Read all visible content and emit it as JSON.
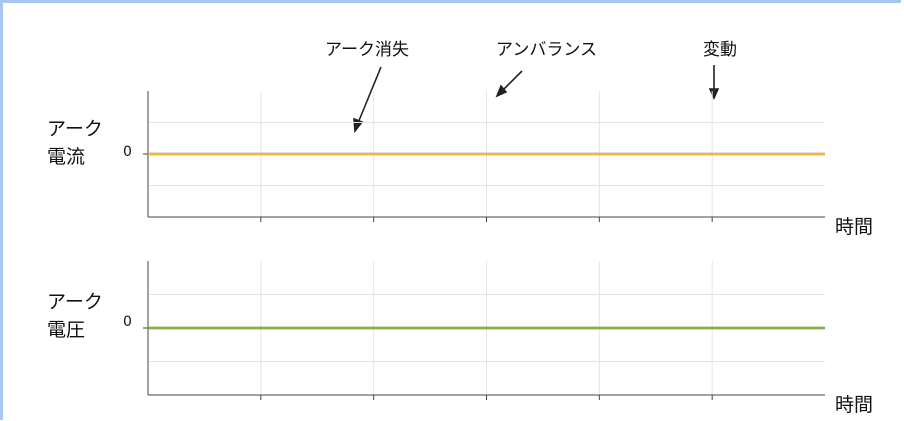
{
  "colors": {
    "blue": "#3a86c8",
    "orange": "#e0562a",
    "yellow": "#f0b73a",
    "green": "#7cb441",
    "grid": "#e4e4e4",
    "axis": "#444444"
  },
  "chart_data": [
    {
      "type": "line",
      "ylabel_line1": "アーク",
      "ylabel_line2": "電流",
      "xlabel": "時間",
      "ytick_label": "0",
      "xlim": [
        0,
        12
      ],
      "ylim": [
        -1.2,
        1.2
      ],
      "grid": true,
      "annotations": [
        {
          "text": "アーク消失"
        },
        {
          "text": "アンバランス"
        },
        {
          "text": "変動"
        }
      ],
      "series": [
        {
          "color": "blue",
          "points": [
            [
              0,
              0
            ],
            [
              0.5,
              0
            ],
            [
              1,
              0
            ],
            [
              1.5,
              0
            ],
            [
              2,
              0
            ],
            [
              2.5,
              0
            ],
            [
              3,
              0
            ],
            [
              3.5,
              0
            ],
            [
              4,
              0
            ],
            [
              4.5,
              0
            ],
            [
              5,
              0
            ],
            [
              5.5,
              0
            ],
            [
              6,
              0
            ],
            [
              6.5,
              0
            ],
            [
              7,
              0
            ],
            [
              7.5,
              0
            ],
            [
              8,
              0
            ],
            [
              8.5,
              0
            ],
            [
              9,
              0
            ],
            [
              9.5,
              0
            ],
            [
              10,
              0
            ],
            [
              10.5,
              0
            ],
            [
              11,
              0
            ],
            [
              11.5,
              0
            ],
            [
              12,
              0
            ]
          ]
        },
        {
          "color": "orange",
          "points": [
            [
              0,
              0
            ],
            [
              0.5,
              0
            ],
            [
              1,
              0
            ],
            [
              1.5,
              0
            ],
            [
              2,
              0
            ],
            [
              2.5,
              0
            ],
            [
              3,
              0
            ],
            [
              3.5,
              0
            ],
            [
              4,
              0
            ],
            [
              4.5,
              0
            ],
            [
              5,
              0
            ],
            [
              5.5,
              0
            ],
            [
              6,
              0
            ],
            [
              6.5,
              0
            ],
            [
              7,
              0
            ],
            [
              7.5,
              0
            ],
            [
              8,
              0
            ],
            [
              8.5,
              0
            ],
            [
              9,
              0
            ],
            [
              9.5,
              0
            ],
            [
              10,
              0
            ],
            [
              10.5,
              0
            ],
            [
              11,
              0
            ],
            [
              11.5,
              0
            ],
            [
              12,
              0
            ]
          ]
        },
        {
          "color": "yellow",
          "points": [
            [
              0,
              0
            ],
            [
              0.5,
              0
            ],
            [
              1,
              0
            ],
            [
              1.5,
              0
            ],
            [
              2,
              0
            ],
            [
              2.5,
              0
            ],
            [
              3,
              0
            ],
            [
              3.5,
              0
            ],
            [
              4,
              0
            ],
            [
              4.5,
              0
            ],
            [
              5,
              0
            ],
            [
              5.5,
              0
            ],
            [
              6,
              0
            ],
            [
              6.5,
              0
            ],
            [
              7,
              0
            ],
            [
              7.5,
              0
            ],
            [
              8,
              0
            ],
            [
              8.5,
              0
            ],
            [
              9,
              0
            ],
            [
              9.5,
              0
            ],
            [
              10,
              0
            ],
            [
              10.5,
              0
            ],
            [
              11,
              0
            ],
            [
              11.5,
              0
            ],
            [
              12,
              0
            ]
          ]
        }
      ]
    },
    {
      "type": "line",
      "ylabel_line1": "アーク",
      "ylabel_line2": "電圧",
      "xlabel": "時間",
      "ytick_label": "0",
      "xlim": [
        0,
        12
      ],
      "ylim": [
        -1.2,
        1.2
      ],
      "grid": true,
      "series": [
        {
          "color": "blue",
          "points": [
            [
              0,
              0
            ],
            [
              0.5,
              0
            ],
            [
              1,
              0
            ],
            [
              1.5,
              0
            ],
            [
              2,
              0
            ],
            [
              2.5,
              0
            ],
            [
              3,
              0
            ],
            [
              3.5,
              0
            ],
            [
              4,
              0
            ],
            [
              4.5,
              0
            ],
            [
              5,
              0
            ],
            [
              5.5,
              0
            ],
            [
              6,
              0
            ],
            [
              6.5,
              0
            ],
            [
              7,
              0
            ],
            [
              7.5,
              0
            ],
            [
              8,
              0
            ],
            [
              8.5,
              0
            ],
            [
              9,
              0
            ],
            [
              9.5,
              0
            ],
            [
              10,
              0
            ],
            [
              10.5,
              0
            ],
            [
              11,
              0
            ],
            [
              11.5,
              0
            ],
            [
              12,
              0
            ]
          ]
        },
        {
          "color": "orange",
          "points": [
            [
              0,
              0
            ],
            [
              0.5,
              0
            ],
            [
              1,
              0
            ],
            [
              1.5,
              0
            ],
            [
              2,
              0
            ],
            [
              2.5,
              0
            ],
            [
              3,
              0
            ],
            [
              3.5,
              0
            ],
            [
              4,
              0
            ],
            [
              4.5,
              0
            ],
            [
              5,
              0
            ],
            [
              5.5,
              0
            ],
            [
              6,
              0
            ],
            [
              6.5,
              0
            ],
            [
              7,
              0
            ],
            [
              7.5,
              0
            ],
            [
              8,
              0
            ],
            [
              8.5,
              0
            ],
            [
              9,
              0
            ],
            [
              9.5,
              0
            ],
            [
              10,
              0
            ],
            [
              10.5,
              0
            ],
            [
              11,
              0
            ],
            [
              11.5,
              0
            ],
            [
              12,
              0
            ]
          ]
        },
        {
          "color": "yellow",
          "points": [
            [
              0,
              0
            ],
            [
              0.5,
              0
            ],
            [
              1,
              0
            ],
            [
              1.5,
              0
            ],
            [
              2,
              0
            ],
            [
              2.5,
              0
            ],
            [
              3,
              0
            ],
            [
              3.5,
              0
            ],
            [
              4,
              0
            ],
            [
              4.5,
              0
            ],
            [
              5,
              0
            ],
            [
              5.5,
              0
            ],
            [
              6,
              0
            ],
            [
              6.5,
              0
            ],
            [
              7,
              0
            ],
            [
              7.5,
              0
            ],
            [
              8,
              0
            ],
            [
              8.5,
              0
            ],
            [
              9,
              0
            ],
            [
              9.5,
              0
            ],
            [
              10,
              0
            ],
            [
              10.5,
              0
            ],
            [
              11,
              0
            ],
            [
              11.5,
              0
            ],
            [
              12,
              0
            ]
          ]
        },
        {
          "color": "green",
          "points": [
            [
              0,
              0
            ],
            [
              0.5,
              0
            ],
            [
              1,
              0
            ],
            [
              1.5,
              0
            ],
            [
              2,
              0
            ],
            [
              2.5,
              0
            ],
            [
              3,
              0
            ],
            [
              3.5,
              0
            ],
            [
              4,
              0
            ],
            [
              4.5,
              0
            ],
            [
              5,
              0
            ],
            [
              5.5,
              0
            ],
            [
              6,
              0
            ],
            [
              6.5,
              0
            ],
            [
              7,
              0
            ],
            [
              7.5,
              0
            ],
            [
              8,
              0
            ],
            [
              8.5,
              0
            ],
            [
              9,
              0
            ],
            [
              9.5,
              0
            ],
            [
              10,
              0
            ],
            [
              10.5,
              0
            ],
            [
              11,
              0
            ],
            [
              11.5,
              0
            ],
            [
              12,
              0
            ]
          ]
        }
      ]
    }
  ]
}
